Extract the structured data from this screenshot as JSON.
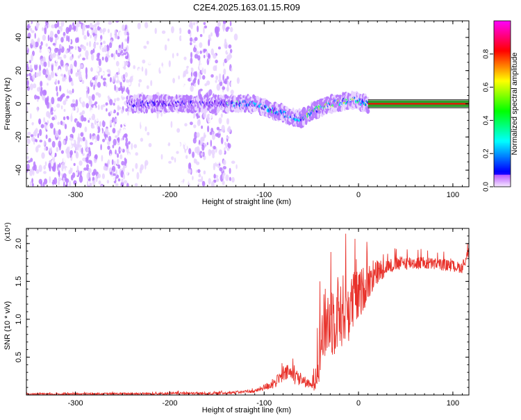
{
  "title": "C2E4.2025.163.01.15.R09",
  "colors": {
    "snr_line": "#e8312a",
    "baseline_band": "#2ca02c",
    "center_line": "#ff0000",
    "colorscale": [
      "#ffffff",
      "#e8d4ff",
      "#b87cff",
      "#7b2cf0",
      "#3a1dff",
      "#0077ff",
      "#00e5ff",
      "#33ff66",
      "#ccff33",
      "#ffcc00",
      "#ff3300",
      "#ff0077"
    ]
  },
  "chart_data": [
    {
      "type": "heatmap",
      "xlabel": "Height of straight line (km)",
      "ylabel": "Frequency (Hz)",
      "xlim": [
        -352,
        117
      ],
      "ylim": [
        -50,
        50
      ],
      "x_ticks": [
        -300,
        -200,
        -100,
        0,
        100
      ],
      "y_ticks": [
        -40,
        -20,
        0,
        20,
        40
      ],
      "colorbar": {
        "label": "Normalized spectral amplitude",
        "range": [
          0,
          1
        ],
        "ticks": [
          "0.0",
          "0.2",
          "0.4",
          "0.6",
          "0.8"
        ]
      },
      "bands": [
        {
          "x": [
            -352,
            -243
          ],
          "kind": "strong_noise",
          "density": 1.0
        },
        {
          "x": [
            -243,
            -180
          ],
          "kind": "weak_noise",
          "density": 0.45
        },
        {
          "x": [
            -180,
            -135
          ],
          "kind": "strong_noise",
          "density": 0.8
        },
        {
          "x": [
            -135,
            -125
          ],
          "kind": "weak_noise",
          "density": 0.3
        }
      ],
      "signal_track": [
        {
          "x": -245,
          "y": 0
        },
        {
          "x": -200,
          "y": 0
        },
        {
          "x": -160,
          "y": 0
        },
        {
          "x": -130,
          "y": 0
        },
        {
          "x": -110,
          "y": 0
        },
        {
          "x": -95,
          "y": -3
        },
        {
          "x": -80,
          "y": -6
        },
        {
          "x": -70,
          "y": -8
        },
        {
          "x": -60,
          "y": -9
        },
        {
          "x": -55,
          "y": -7
        },
        {
          "x": -48,
          "y": -4
        },
        {
          "x": -35,
          "y": -1
        },
        {
          "x": -20,
          "y": 1
        },
        {
          "x": -5,
          "y": 2
        },
        {
          "x": 10,
          "y": 0
        },
        {
          "x": 117,
          "y": 0
        }
      ],
      "carrier_line": {
        "x_start": 10,
        "y": 0,
        "y_band": [
          -2,
          2
        ]
      }
    },
    {
      "type": "line",
      "xlabel": "Height of straight line (km)",
      "ylabel": "SNR (10 * v/v)",
      "y_multiplier": "(x10⁴)",
      "xlim": [
        -352,
        117
      ],
      "ylim": [
        0,
        2.2
      ],
      "x_ticks": [
        -300,
        -200,
        -100,
        0,
        100
      ],
      "y_ticks": [
        0.5,
        1.0,
        1.5,
        2.0
      ],
      "y_tick_labels": [
        "0.5",
        "1.0",
        "1.5",
        "2.0"
      ],
      "series": [
        {
          "envelope": [
            {
              "x": -352,
              "y": 0.01
            },
            {
              "x": -200,
              "y": 0.02
            },
            {
              "x": -150,
              "y": 0.02
            },
            {
              "x": -110,
              "y": 0.05
            },
            {
              "x": -90,
              "y": 0.15
            },
            {
              "x": -75,
              "y": 0.3
            },
            {
              "x": -60,
              "y": 0.2
            },
            {
              "x": -50,
              "y": 0.12
            },
            {
              "x": -45,
              "y": 0.3
            },
            {
              "x": -40,
              "y": 0.7
            },
            {
              "x": -35,
              "y": 0.95
            },
            {
              "x": -30,
              "y": 1.0
            },
            {
              "x": -20,
              "y": 1.1
            },
            {
              "x": -10,
              "y": 1.15
            },
            {
              "x": 0,
              "y": 1.3
            },
            {
              "x": 10,
              "y": 1.5
            },
            {
              "x": 20,
              "y": 1.62
            },
            {
              "x": 30,
              "y": 1.7
            },
            {
              "x": 50,
              "y": 1.75
            },
            {
              "x": 70,
              "y": 1.74
            },
            {
              "x": 90,
              "y": 1.72
            },
            {
              "x": 110,
              "y": 1.68
            },
            {
              "x": 117,
              "y": 1.9
            }
          ],
          "noise_amplitude": [
            {
              "x": -352,
              "y": 0.01
            },
            {
              "x": -110,
              "y": 0.02
            },
            {
              "x": -85,
              "y": 0.08
            },
            {
              "x": -70,
              "y": 0.12
            },
            {
              "x": -50,
              "y": 0.05
            },
            {
              "x": -40,
              "y": 0.45
            },
            {
              "x": -25,
              "y": 0.55
            },
            {
              "x": -10,
              "y": 0.45
            },
            {
              "x": 10,
              "y": 0.25
            },
            {
              "x": 30,
              "y": 0.1
            },
            {
              "x": 117,
              "y": 0.07
            }
          ]
        }
      ]
    }
  ]
}
